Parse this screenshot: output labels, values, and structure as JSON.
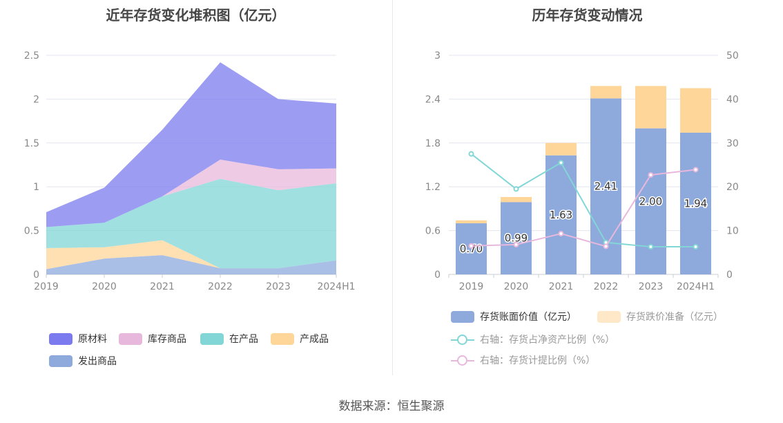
{
  "source": "数据来源：恒生聚源",
  "chart_data": [
    {
      "type": "area",
      "title": "近年存货变化堆积图（亿元）",
      "categories": [
        "2019",
        "2020",
        "2021",
        "2022",
        "2023",
        "2024H1"
      ],
      "ylim": [
        0,
        2.5
      ],
      "yticks": [
        "0",
        "0.5",
        "1",
        "1.5",
        "2",
        "2.5"
      ],
      "stacked": true,
      "series": [
        {
          "name": "发出商品",
          "color": "#8eaadc",
          "values": [
            0.06,
            0.18,
            0.22,
            0.07,
            0.07,
            0.16
          ]
        },
        {
          "name": "产成品",
          "color": "#ffd699",
          "values": [
            0.24,
            0.13,
            0.17,
            0.0,
            0.0,
            0.0
          ]
        },
        {
          "name": "在产品",
          "color": "#82d6d6",
          "values": [
            0.24,
            0.28,
            0.5,
            1.02,
            0.89,
            0.88
          ]
        },
        {
          "name": "库存商品",
          "color": "#e8b8dc",
          "values": [
            0.0,
            0.0,
            0.0,
            0.22,
            0.24,
            0.17
          ]
        },
        {
          "name": "原材料",
          "color": "#7b7bef",
          "values": [
            0.17,
            0.4,
            0.76,
            1.11,
            0.8,
            0.74
          ]
        }
      ],
      "legend": [
        "原材料",
        "库存商品",
        "在产品",
        "产成品",
        "发出商品"
      ],
      "legend_position": "bottom"
    },
    {
      "type": "bar",
      "title": "历年存货变动情况",
      "categories": [
        "2019",
        "2020",
        "2021",
        "2022",
        "2023",
        "2024H1"
      ],
      "ylim": [
        0,
        3
      ],
      "yticks": [
        "0",
        "0.6",
        "1.2",
        "1.8",
        "2.4",
        "3"
      ],
      "y2lim": [
        0,
        50
      ],
      "y2ticks": [
        "0",
        "10",
        "20",
        "30",
        "40",
        "50"
      ],
      "series": [
        {
          "name": "存货账面价值（亿元）",
          "type": "bar",
          "stack": "inv",
          "color": "#8eaadc",
          "values": [
            0.7,
            0.99,
            1.63,
            2.41,
            2.0,
            1.94
          ],
          "labels": [
            "0.70",
            "0.99",
            "1.63",
            "2.41",
            "2.00",
            "1.94"
          ]
        },
        {
          "name": "存货跌价准备（亿元）",
          "type": "bar",
          "stack": "inv",
          "color": "#ffd699",
          "values": [
            0.04,
            0.07,
            0.17,
            0.17,
            0.58,
            0.61
          ]
        },
        {
          "name": "右轴：存货占净资产比例（%）",
          "type": "line",
          "axis": "right",
          "color": "#82d6d6",
          "values": [
            27.5,
            19.5,
            25.5,
            7.3,
            6.3,
            6.3
          ]
        },
        {
          "name": "右轴：存货计提比例（%）",
          "type": "line",
          "axis": "right",
          "color": "#e8b8dc",
          "values": [
            6.5,
            6.8,
            9.3,
            6.4,
            22.7,
            23.9
          ]
        }
      ],
      "legend_position": "bottom"
    }
  ]
}
